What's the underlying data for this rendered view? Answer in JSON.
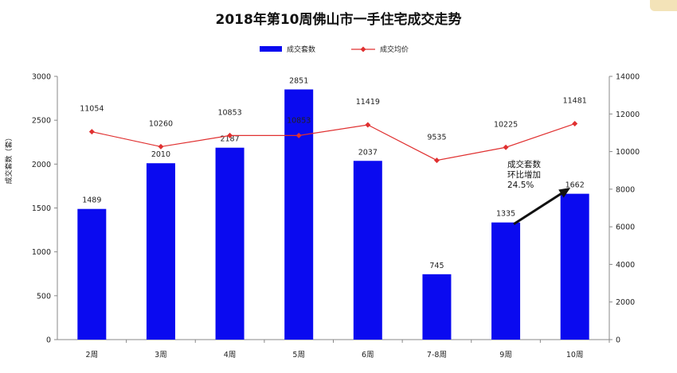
{
  "chart_data": {
    "type": "bar",
    "title": "2018年第10周佛山市一手住宅成交走势",
    "categories": [
      "2周",
      "3周",
      "4周",
      "5周",
      "6周",
      "7-8周",
      "9周",
      "10周"
    ],
    "series": [
      {
        "name": "成交套数",
        "type": "bar",
        "axis": "left",
        "color": "#0a0af0",
        "values": [
          1489,
          2010,
          2187,
          2851,
          2037,
          745,
          1335,
          1662
        ]
      },
      {
        "name": "成交均价",
        "type": "line",
        "axis": "right",
        "color": "#e03030",
        "values": [
          11054,
          10260,
          10853,
          10853,
          11419,
          9535,
          10225,
          11481
        ]
      }
    ],
    "ylabel": "成交套数（套）",
    "ylim": [
      0,
      3000
    ],
    "yticks": [
      "0",
      "500",
      "1000",
      "1500",
      "2000",
      "2500",
      "3000"
    ],
    "y2lim": [
      0,
      14000
    ],
    "y2ticks": [
      "0",
      "2000",
      "4000",
      "6000",
      "8000",
      "10000",
      "12000",
      "14000"
    ],
    "legend_position": "top-center",
    "grid": false,
    "annotation": {
      "lines": [
        "成交套数",
        "环比增加",
        "24.5%"
      ],
      "arrow_from_category": "9周",
      "arrow_to_category": "10周"
    }
  }
}
